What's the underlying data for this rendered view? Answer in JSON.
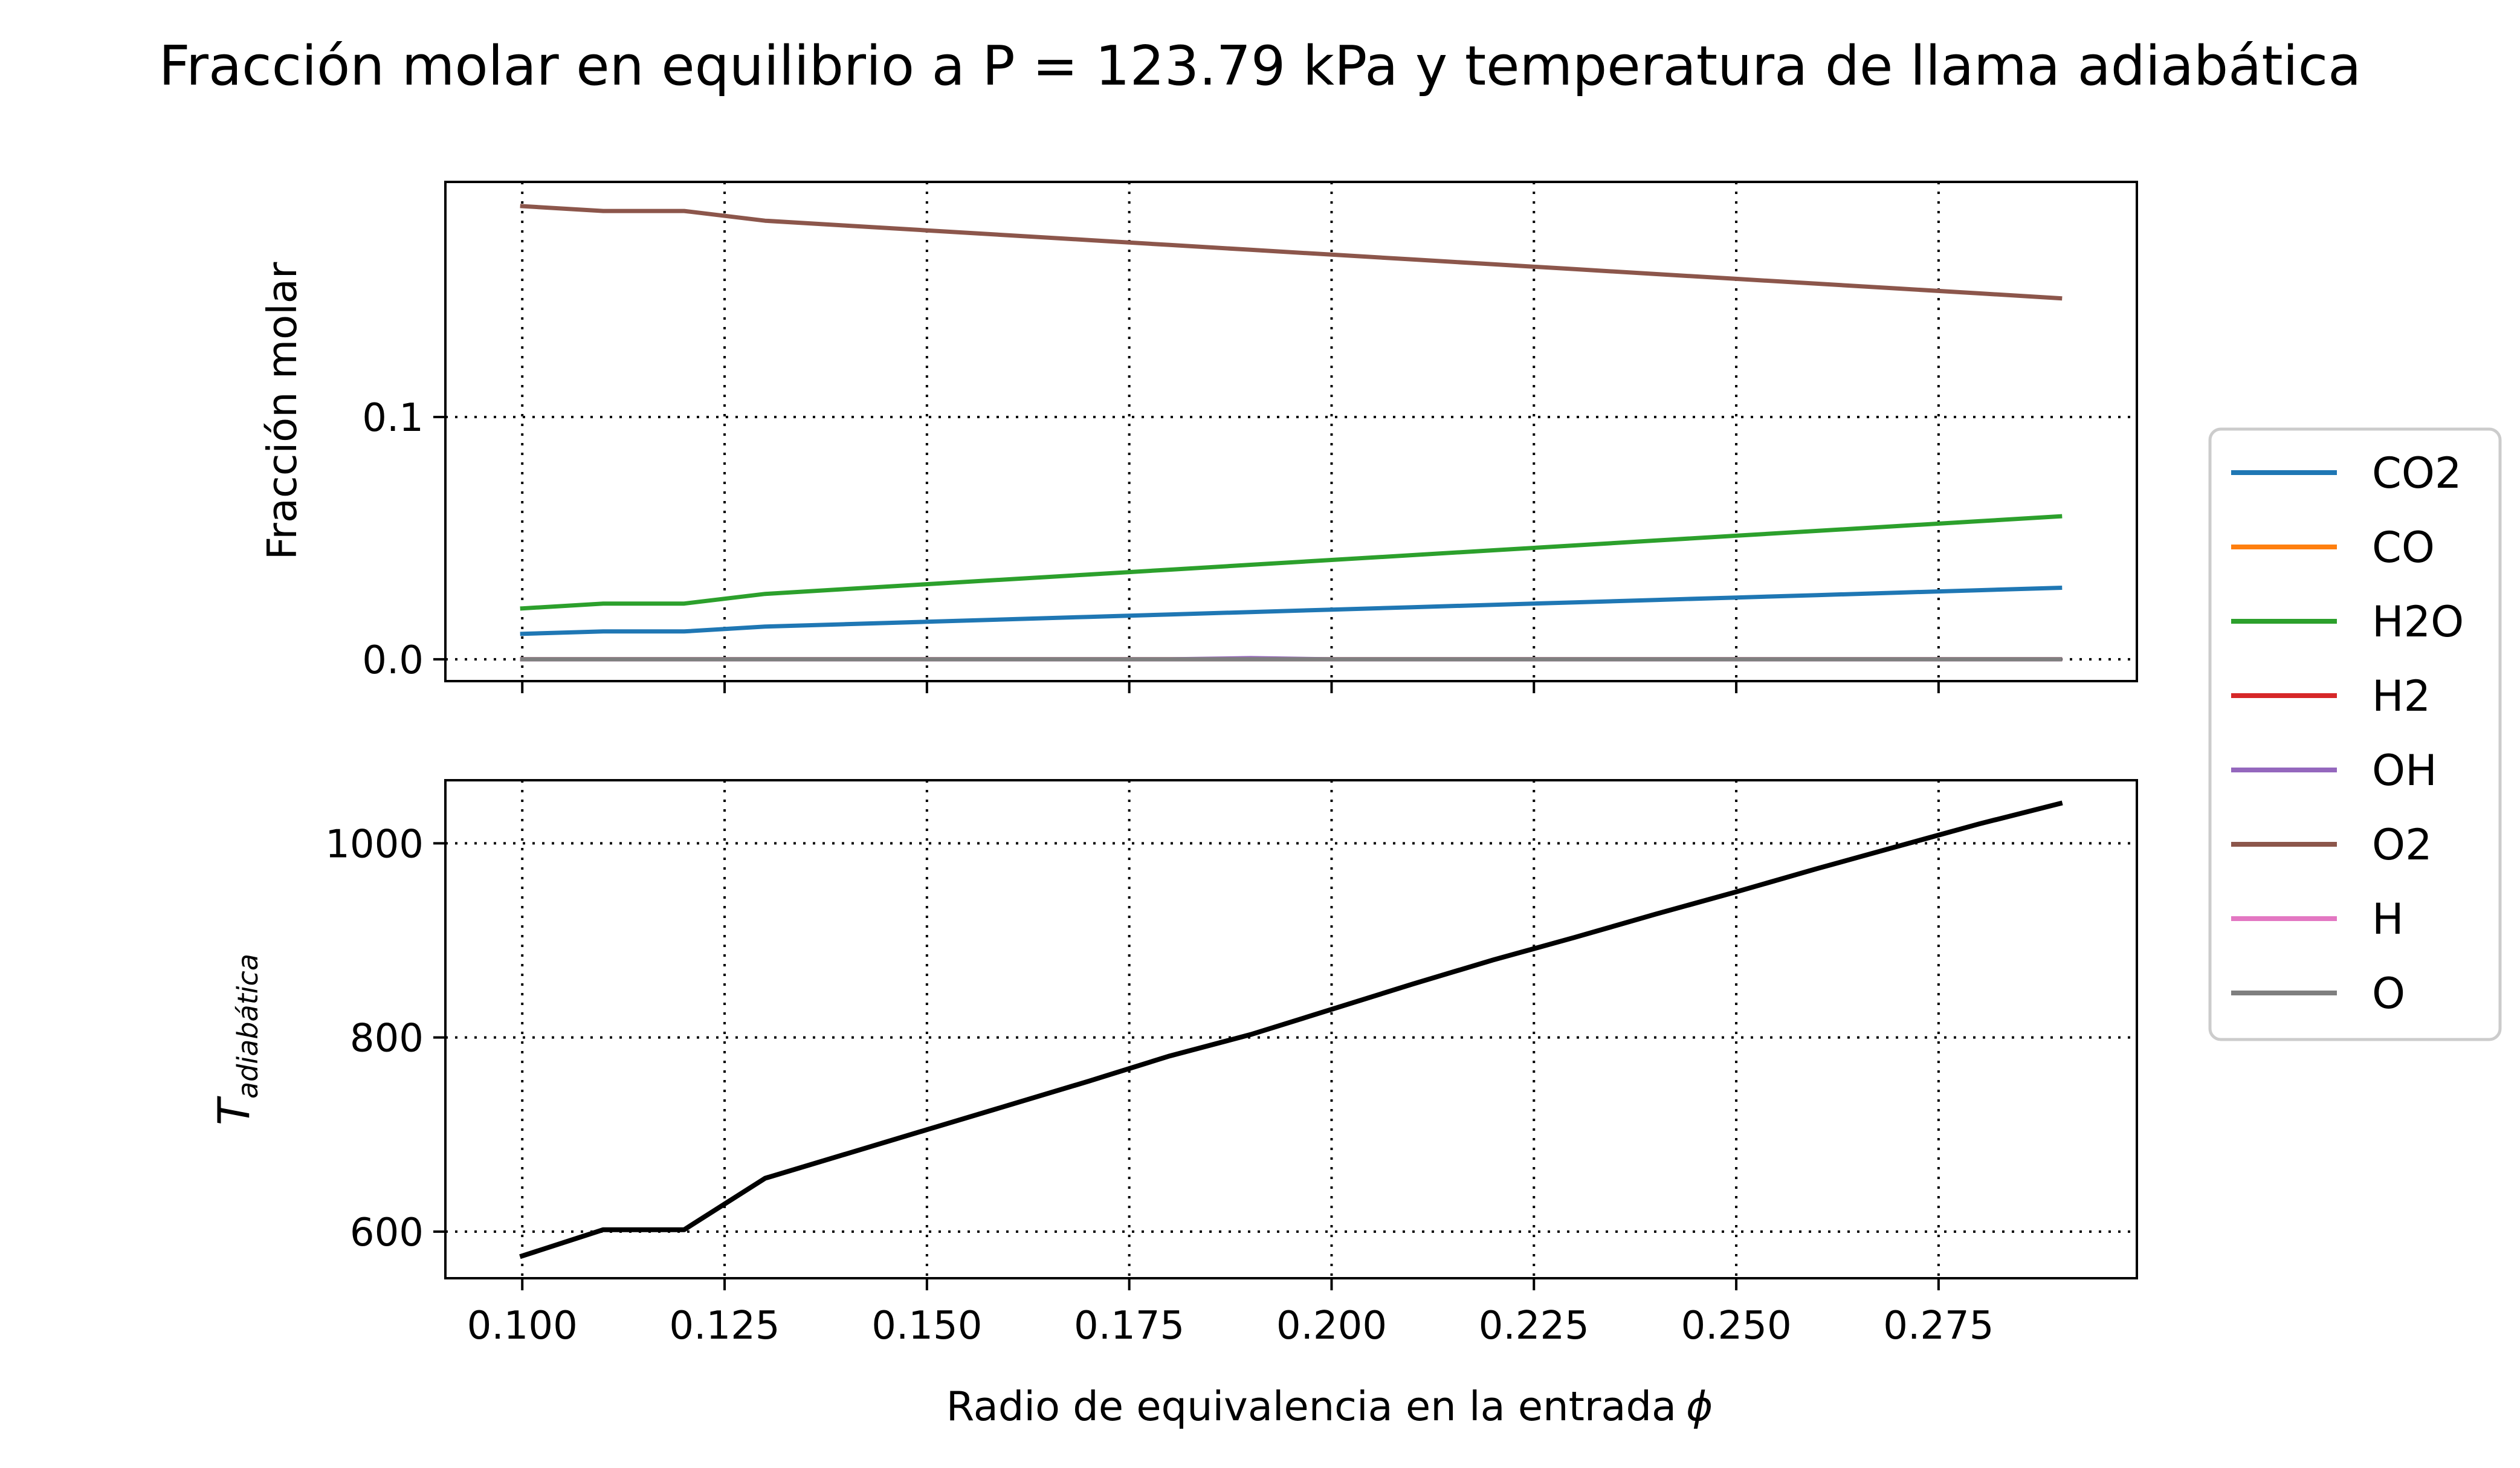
{
  "title": "Fracción molar en equilibrio a P = 123.79 kPa y temperatura de llama adiabática",
  "chart_data": [
    {
      "type": "line",
      "panel": "top",
      "ylabel": "Fracción molar",
      "xlim": [
        0.0905,
        0.2995
      ],
      "ylim": [
        -0.009,
        0.197
      ],
      "x_ticks": [
        "0.100",
        "0.125",
        "0.150",
        "0.175",
        "0.200",
        "0.225",
        "0.250",
        "0.275"
      ],
      "y_ticks": [
        {
          "value": 0.0,
          "label": "0.0"
        },
        {
          "value": 0.1,
          "label": "0.1"
        }
      ],
      "grid": true,
      "x": [
        0.1,
        0.11,
        0.12,
        0.13,
        0.14,
        0.15,
        0.16,
        0.17,
        0.18,
        0.19,
        0.2,
        0.21,
        0.22,
        0.23,
        0.24,
        0.25,
        0.26,
        0.27,
        0.28,
        0.29
      ],
      "series": [
        {
          "name": "CO2",
          "color": "#1f77b4",
          "values": [
            0.0105,
            0.0115,
            0.0115,
            0.0135,
            0.0145,
            0.0155,
            0.0165,
            0.0175,
            0.0185,
            0.0195,
            0.0205,
            0.0215,
            0.0225,
            0.0235,
            0.0245,
            0.0255,
            0.0265,
            0.0275,
            0.0285,
            0.0295
          ]
        },
        {
          "name": "CO",
          "color": "#ff7f0e",
          "values": [
            0,
            0,
            0,
            0,
            0,
            0,
            0,
            0,
            0,
            0,
            0,
            0,
            0,
            0,
            0,
            0,
            0,
            0,
            0,
            0
          ]
        },
        {
          "name": "H2O",
          "color": "#2ca02c",
          "values": [
            0.021,
            0.023,
            0.023,
            0.027,
            0.029,
            0.031,
            0.033,
            0.035,
            0.037,
            0.039,
            0.041,
            0.043,
            0.045,
            0.047,
            0.049,
            0.051,
            0.053,
            0.055,
            0.057,
            0.059
          ]
        },
        {
          "name": "H2",
          "color": "#d62728",
          "values": [
            0,
            0,
            0,
            0,
            0,
            0,
            0,
            0,
            0,
            0,
            0,
            0,
            0,
            0,
            0,
            0,
            0,
            0,
            0,
            0
          ]
        },
        {
          "name": "OH",
          "color": "#9467bd",
          "values": [
            0,
            0,
            0,
            0,
            0,
            0,
            0,
            0,
            0,
            0.0005,
            0,
            0,
            0,
            0,
            0,
            0,
            0,
            0,
            0,
            0
          ]
        },
        {
          "name": "O2",
          "color": "#8c564b",
          "values": [
            0.187,
            0.185,
            0.185,
            0.181,
            0.179,
            0.177,
            0.175,
            0.173,
            0.171,
            0.169,
            0.167,
            0.165,
            0.163,
            0.161,
            0.159,
            0.157,
            0.155,
            0.153,
            0.151,
            0.149
          ]
        },
        {
          "name": "H",
          "color": "#e377c2",
          "values": [
            0,
            0,
            0,
            0,
            0,
            0,
            0,
            0,
            0,
            0,
            0,
            0,
            0,
            0,
            0,
            0,
            0,
            0,
            0,
            0
          ]
        },
        {
          "name": "O",
          "color": "#7f7f7f",
          "values": [
            0,
            0,
            0,
            0,
            0,
            0,
            0,
            0,
            0,
            0,
            0,
            0,
            0,
            0,
            0,
            0,
            0,
            0,
            0,
            0
          ]
        }
      ]
    },
    {
      "type": "line",
      "panel": "bottom",
      "xlabel": "Radio de equivalencia en la entrada",
      "xlabel_symbol": "ϕ",
      "ylabel_main": "T",
      "ylabel_sub": "adiabática",
      "xlim": [
        0.0905,
        0.2995
      ],
      "ylim": [
        552,
        1065
      ],
      "x_ticks": [
        "0.100",
        "0.125",
        "0.150",
        "0.175",
        "0.200",
        "0.225",
        "0.250",
        "0.275"
      ],
      "y_ticks": [
        {
          "value": 600,
          "label": "600"
        },
        {
          "value": 800,
          "label": "800"
        },
        {
          "value": 1000,
          "label": "1000"
        }
      ],
      "grid": true,
      "x": [
        0.1,
        0.11,
        0.12,
        0.13,
        0.14,
        0.15,
        0.16,
        0.17,
        0.18,
        0.19,
        0.2,
        0.21,
        0.22,
        0.23,
        0.24,
        0.25,
        0.26,
        0.27,
        0.28,
        0.29
      ],
      "series": [
        {
          "color": "#000000",
          "values": [
            575,
            602,
            602,
            655,
            680,
            705,
            730,
            755,
            781,
            803,
            829,
            855,
            880,
            903,
            927,
            950,
            974,
            997,
            1020,
            1041
          ]
        }
      ]
    }
  ],
  "legend": {
    "placement": "right",
    "entries": [
      {
        "label": "CO2",
        "color": "#1f77b4"
      },
      {
        "label": "CO",
        "color": "#ff7f0e"
      },
      {
        "label": "H2O",
        "color": "#2ca02c"
      },
      {
        "label": "H2",
        "color": "#d62728"
      },
      {
        "label": "OH",
        "color": "#9467bd"
      },
      {
        "label": "O2",
        "color": "#8c564b"
      },
      {
        "label": "H",
        "color": "#e377c2"
      },
      {
        "label": "O",
        "color": "#7f7f7f"
      }
    ]
  }
}
